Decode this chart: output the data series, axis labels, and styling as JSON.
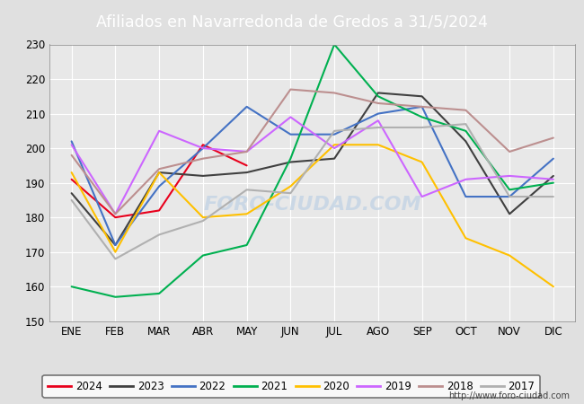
{
  "title": "Afiliados en Navarredonda de Gredos a 31/5/2024",
  "ylim": [
    150,
    230
  ],
  "yticks": [
    150,
    160,
    170,
    180,
    190,
    200,
    210,
    220,
    230
  ],
  "months": [
    "ENE",
    "FEB",
    "MAR",
    "ABR",
    "MAY",
    "JUN",
    "JUL",
    "AGO",
    "SEP",
    "OCT",
    "NOV",
    "DIC"
  ],
  "url": "http://www.foro-ciudad.com",
  "series": {
    "2024": {
      "color": "#e8001c",
      "data": [
        191,
        180,
        182,
        201,
        195,
        null,
        null,
        null,
        null,
        null,
        null,
        null
      ]
    },
    "2023": {
      "color": "#404040",
      "data": [
        187,
        172,
        193,
        192,
        193,
        196,
        197,
        216,
        215,
        202,
        181,
        192
      ]
    },
    "2022": {
      "color": "#4472c4",
      "data": [
        202,
        172,
        189,
        200,
        212,
        204,
        204,
        210,
        212,
        186,
        186,
        197
      ]
    },
    "2021": {
      "color": "#00b050",
      "data": [
        160,
        157,
        158,
        169,
        172,
        197,
        230,
        215,
        209,
        205,
        188,
        190
      ]
    },
    "2020": {
      "color": "#ffc000",
      "data": [
        193,
        170,
        193,
        180,
        181,
        189,
        201,
        201,
        196,
        174,
        169,
        160
      ]
    },
    "2019": {
      "color": "#cc66ff",
      "data": [
        201,
        181,
        205,
        200,
        199,
        209,
        200,
        208,
        186,
        191,
        192,
        191
      ]
    },
    "2018": {
      "color": "#bc8f8f",
      "data": [
        198,
        181,
        194,
        197,
        199,
        217,
        216,
        213,
        212,
        211,
        199,
        203
      ]
    },
    "2017": {
      "color": "#b0b0b0",
      "data": [
        185,
        168,
        175,
        179,
        188,
        187,
        205,
        206,
        206,
        207,
        186,
        186
      ]
    }
  },
  "legend_order": [
    "2024",
    "2023",
    "2022",
    "2021",
    "2020",
    "2019",
    "2018",
    "2017"
  ],
  "header_color": "#4169b0",
  "plot_bg": "#e8e8e8",
  "grid_color": "#ffffff",
  "watermark_color": "#c5d5e5",
  "fig_bg": "#e0e0e0"
}
